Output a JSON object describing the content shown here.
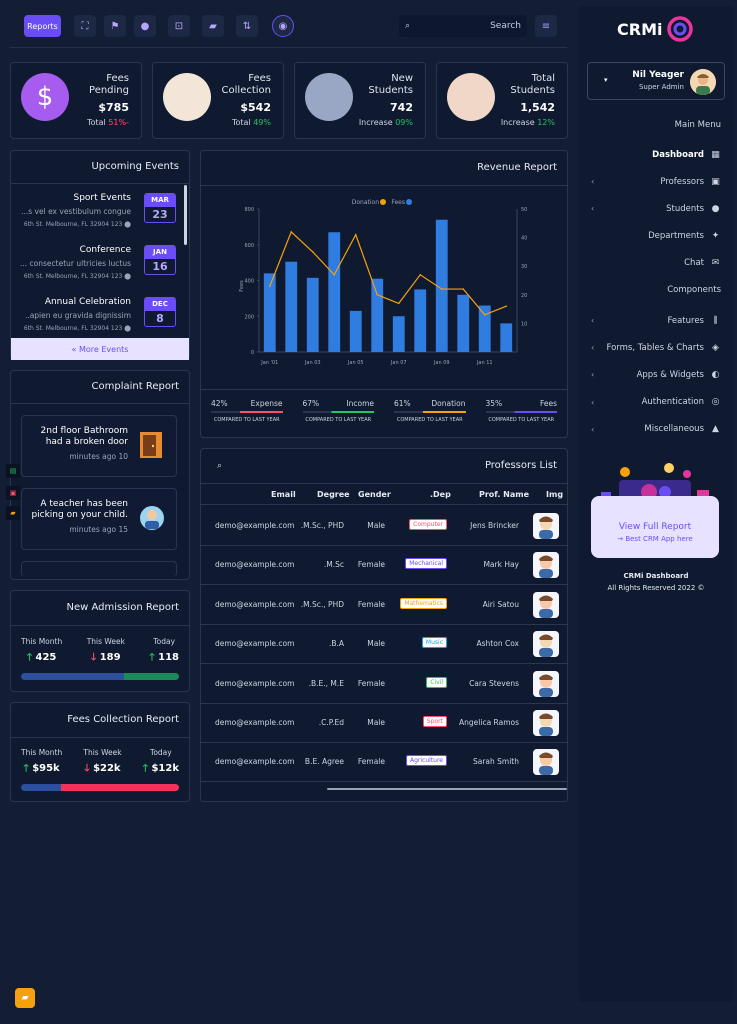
{
  "topbar": {
    "reports_label": "Reports",
    "search_placeholder": "Search",
    "icons": [
      "fullscreen-icon",
      "flag-icon",
      "chat-icon",
      "cart-icon",
      "folder-icon",
      "task-icon",
      "bell-icon"
    ]
  },
  "stats": [
    {
      "label_1": "Fees",
      "label_2": "Pending",
      "value": "$785",
      "sub_prefix": "Total",
      "sub_value": "51%-",
      "sub_color": "#ff4d6d"
    },
    {
      "label_1": "Fees",
      "label_2": "Collection",
      "value": "$542",
      "sub_prefix": "Total",
      "sub_value": "49%",
      "sub_color": "#22c55e"
    },
    {
      "label_1": "New",
      "label_2": "Students",
      "value": "742",
      "sub_prefix": "Increase",
      "sub_value": "09%",
      "sub_color": "#22c55e"
    },
    {
      "label_1": "Total",
      "label_2": "Students",
      "value": "1,542",
      "sub_prefix": "Increase",
      "sub_value": "12%",
      "sub_color": "#22c55e"
    }
  ],
  "events": {
    "title": "Upcoming Events",
    "more": "« More Events",
    "items": [
      {
        "title": "Sport Events",
        "desc": "...s vel ex vestibulum congue",
        "addr": "6th St. Melbourne, FL 32904 123",
        "month": "MAR",
        "day": "23"
      },
      {
        "title": "Conference",
        "desc": "... consectetur ultricies luctus",
        "addr": "6th St. Melbourne, FL 32904 123",
        "month": "JAN",
        "day": "16"
      },
      {
        "title": "Annual Celebration",
        "desc": "..apien eu gravida dignissim",
        "addr": "6th St. Melbourne, FL 32904 123",
        "month": "DEC",
        "day": "8"
      }
    ]
  },
  "complaints": {
    "title": "Complaint Report",
    "items": [
      {
        "text": "2nd floor Bathroom had a broken door",
        "time": "minutes ago 10"
      },
      {
        "text": "A teacher has been picking on your child.",
        "time": "minutes ago 15"
      }
    ]
  },
  "admission": {
    "title": "New Admission Report",
    "cols": [
      {
        "label": "This Month",
        "value": "425",
        "dir": "up"
      },
      {
        "label": "This Week",
        "value": "189",
        "dir": "down"
      },
      {
        "label": "Today",
        "value": "118",
        "dir": "up"
      }
    ],
    "bar": [
      0.65,
      0.35
    ]
  },
  "fees_report": {
    "title": "Fees Collection Report",
    "cols": [
      {
        "label": "This Month",
        "value": "$95k",
        "dir": "up"
      },
      {
        "label": "This Week",
        "value": "$22k",
        "dir": "down"
      },
      {
        "label": "Today",
        "value": "$12k",
        "dir": "up"
      }
    ],
    "bar": [
      0.25,
      0.75
    ]
  },
  "revenue": {
    "title": "Revenue Report",
    "legend_donation": "Donation",
    "legend_fees": "Fees",
    "stats": [
      {
        "pct": "42%",
        "label": "Expense",
        "caption": "COMPARED TO LAST YEAR",
        "color": "#ff4d6d"
      },
      {
        "pct": "67%",
        "label": "Income",
        "caption": "COMPARED TO LAST YEAR",
        "color": "#22c55e"
      },
      {
        "pct": "61%",
        "label": "Donation",
        "caption": "COMPARED TO LAST YEAR",
        "color": "#f5a20a"
      },
      {
        "pct": "35%",
        "label": "Fees",
        "caption": "COMPARED TO LAST YEAR",
        "color": "#6b4df5"
      }
    ]
  },
  "chart_data": {
    "type": "bar",
    "title": "",
    "ylabel": "Fees",
    "ylim": [
      0,
      1000
    ],
    "y2lim": [
      0,
      50
    ],
    "y_ticks": [
      "0",
      "200",
      "400",
      "600",
      "800"
    ],
    "y2_ticks": [
      "10",
      "20",
      "30",
      "40",
      "50"
    ],
    "x_tick_labels": [
      "Jan '01",
      "Jan 03",
      "Jan 05",
      "Jan 07",
      "Jan 09",
      "Jan 11"
    ],
    "series": [
      {
        "name": "Fees",
        "type": "bar",
        "color": "#2f7de1",
        "values": [
          440,
          505,
          415,
          670,
          230,
          410,
          200,
          350,
          740,
          320,
          260,
          160
        ]
      },
      {
        "name": "Donation",
        "type": "line",
        "color": "#f5a20a",
        "values": [
          23,
          42,
          35,
          27,
          41,
          20,
          17,
          27,
          22,
          22,
          13,
          16
        ]
      }
    ],
    "grid": false
  },
  "professors": {
    "title": "Professors List",
    "headers": {
      "email": "Email",
      "degree": "Degree",
      "gender": "Gender",
      "dep": ".Dep",
      "name": "Prof. Name",
      "img": "Img"
    },
    "rows": [
      {
        "email": "demo@example.com",
        "degree": ".M.Sc., PHD",
        "gender": "Male",
        "dep": "Computer",
        "dep_color": "#ff4d6d",
        "name": "Jens Brincker",
        "avatar": "#f3d8b4"
      },
      {
        "email": "demo@example.com",
        "degree": ".M.Sc",
        "gender": "Female",
        "dep": "Mechanical",
        "dep_color": "#6b4df5",
        "name": "Mark Hay",
        "avatar": "#f7c9a9"
      },
      {
        "email": "demo@example.com",
        "degree": ".M.Sc., PHD",
        "gender": "Female",
        "dep": "Mathematics",
        "dep_color": "#f5a20a",
        "name": "Airi Satou",
        "avatar": "#f7c9a9"
      },
      {
        "email": "demo@example.com",
        "degree": ".B.A",
        "gender": "Male",
        "dep": "Music",
        "dep_color": "#0ea5e9",
        "name": "Ashton Cox",
        "avatar": "#f3d8b4"
      },
      {
        "email": "demo@example.com",
        "degree": ".B.E., M.E",
        "gender": "Female",
        "dep": "Civil",
        "dep_color": "#22c55e",
        "name": "Cara Stevens",
        "avatar": "#f7c9a9"
      },
      {
        "email": "demo@example.com",
        "degree": ".C.P.Ed",
        "gender": "Male",
        "dep": "Sport",
        "dep_color": "#ff4d6d",
        "name": "Angelica Ramos",
        "avatar": "#f3d8b4"
      },
      {
        "email": "demo@example.com",
        "degree": "B.E. Agree",
        "gender": "Female",
        "dep": "Agriculture",
        "dep_color": "#6b4df5",
        "name": "Sarah Smith",
        "avatar": "#f7c9a9"
      }
    ]
  },
  "sidebar": {
    "logo": "CRMi",
    "user_name": "Nil Yeager",
    "user_role": "Super Admin",
    "section_main": "Main Menu",
    "items": [
      {
        "label": "Dashboard",
        "icon": "dashboard-icon",
        "glyph": "▦",
        "chev": false,
        "active": true
      },
      {
        "label": "Professors",
        "icon": "professor-icon",
        "glyph": "▣",
        "chev": true
      },
      {
        "label": "Students",
        "icon": "student-icon",
        "glyph": "●",
        "chev": true
      },
      {
        "label": "Departments",
        "icon": "department-icon",
        "glyph": "✦",
        "chev": false
      },
      {
        "label": "Chat",
        "icon": "chat-icon",
        "glyph": "✉",
        "chev": false
      }
    ],
    "section_components": "Components",
    "items2": [
      {
        "label": "Features",
        "icon": "features-icon",
        "glyph": "⫼",
        "chev": true
      },
      {
        "label": "Forms, Tables & Charts",
        "icon": "forms-icon",
        "glyph": "◈",
        "chev": true
      },
      {
        "label": "Apps & Widgets",
        "icon": "widgets-icon",
        "glyph": "◐",
        "chev": true
      },
      {
        "label": "Authentication",
        "icon": "auth-icon",
        "glyph": "◎",
        "chev": true
      },
      {
        "label": "Miscellaneous",
        "icon": "warning-icon",
        "glyph": "▲",
        "chev": true
      }
    ],
    "promo_title": "View Full Report",
    "promo_sub": "→ Best CRM App here",
    "footer_1": "CRMi Dashboard",
    "footer_2": "All Rights Reserved 2022 ©"
  }
}
